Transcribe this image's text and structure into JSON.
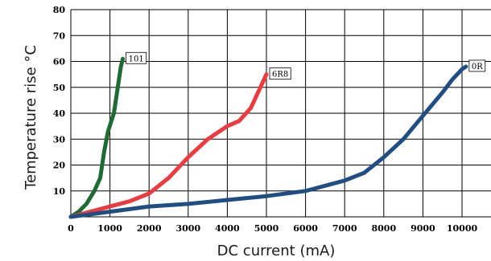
{
  "chart_data": {
    "type": "line",
    "xlabel": "DC current (mA)",
    "ylabel": "Temperature rise °C",
    "xlim": [
      0,
      10000
    ],
    "ylim": [
      0,
      80
    ],
    "x_ticks": [
      0,
      1000,
      2000,
      3000,
      4000,
      5000,
      6000,
      7000,
      8000,
      9000,
      10000
    ],
    "y_ticks": [
      10,
      20,
      30,
      40,
      50,
      60,
      70,
      80
    ],
    "grid": true,
    "series": [
      {
        "name": "101",
        "color": "#1f6b34",
        "points": [
          [
            0,
            0
          ],
          [
            200,
            2
          ],
          [
            400,
            5
          ],
          [
            600,
            10
          ],
          [
            750,
            15
          ],
          [
            850,
            25
          ],
          [
            950,
            33
          ],
          [
            1100,
            40
          ],
          [
            1200,
            50
          ],
          [
            1280,
            58
          ],
          [
            1330,
            61
          ]
        ]
      },
      {
        "name": "6R8",
        "color": "#ee3a3f",
        "points": [
          [
            0,
            0
          ],
          [
            500,
            2
          ],
          [
            1000,
            4
          ],
          [
            1500,
            6
          ],
          [
            2000,
            9
          ],
          [
            2500,
            15
          ],
          [
            3000,
            23
          ],
          [
            3500,
            30
          ],
          [
            4000,
            35
          ],
          [
            4300,
            37
          ],
          [
            4600,
            42
          ],
          [
            5000,
            55
          ]
        ]
      },
      {
        "name": "0R",
        "color": "#1f4e85",
        "points": [
          [
            0,
            0
          ],
          [
            1000,
            2
          ],
          [
            2000,
            4
          ],
          [
            3000,
            5
          ],
          [
            4000,
            6.5
          ],
          [
            5000,
            8
          ],
          [
            6000,
            10
          ],
          [
            7000,
            14
          ],
          [
            7500,
            17
          ],
          [
            8000,
            23
          ],
          [
            8500,
            30
          ],
          [
            9000,
            39
          ],
          [
            9500,
            48
          ],
          [
            9750,
            53
          ],
          [
            10000,
            57
          ],
          [
            10100,
            58
          ]
        ]
      }
    ]
  }
}
